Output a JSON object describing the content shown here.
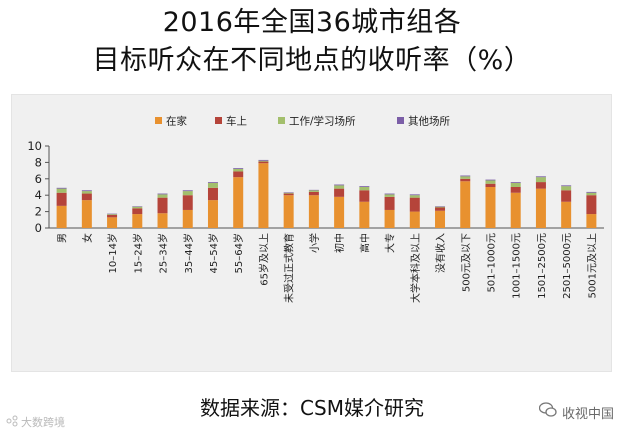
{
  "title_line1": "2016年全国36城市组各",
  "title_line2": "目标听众在不同地点的收听率（%）",
  "source": "数据来源：CSM媒介研究",
  "watermark_left": "大数跨境",
  "watermark_right": "收视中国",
  "colors": {
    "home": "#e8912f",
    "car": "#b5443a",
    "work": "#a3bf6c",
    "other": "#7b5ea7"
  },
  "chart_data": {
    "type": "bar",
    "stacked": true,
    "title": "2016年全国36城市组各目标听众在不同地点的收听率（%）",
    "ylim": [
      0,
      10
    ],
    "yticks": [
      0,
      2,
      4,
      6,
      8,
      10
    ],
    "legend_position": "top",
    "categories": [
      "男",
      "女",
      "10–14岁",
      "15–24岁",
      "25–34岁",
      "35–44岁",
      "45–54岁",
      "55–64岁",
      "65岁及以上",
      "未受过正式教育",
      "小学",
      "初中",
      "高中",
      "大专",
      "大学本科及以上",
      "没有收入",
      "500元及以下",
      "501–1000元",
      "1001–1500元",
      "1501–2500元",
      "2501–5000元",
      "5001元及以上"
    ],
    "series": [
      {
        "name": "在家",
        "key": "home",
        "values": [
          2.7,
          3.4,
          1.3,
          1.7,
          1.8,
          2.2,
          3.4,
          6.2,
          7.9,
          4.0,
          4.0,
          3.8,
          3.2,
          2.2,
          2.0,
          2.1,
          5.7,
          5.0,
          4.3,
          4.8,
          3.2,
          1.7
        ]
      },
      {
        "name": "车上",
        "key": "car",
        "values": [
          1.6,
          0.8,
          0.3,
          0.7,
          1.9,
          1.8,
          1.5,
          0.7,
          0.2,
          0.2,
          0.4,
          1.0,
          1.4,
          1.6,
          1.7,
          0.4,
          0.3,
          0.4,
          0.7,
          0.8,
          1.4,
          2.3
        ]
      },
      {
        "name": "工作/学习场所",
        "key": "work",
        "values": [
          0.5,
          0.3,
          0.1,
          0.2,
          0.4,
          0.5,
          0.6,
          0.3,
          0.1,
          0.1,
          0.2,
          0.4,
          0.4,
          0.3,
          0.3,
          0.1,
          0.3,
          0.4,
          0.5,
          0.6,
          0.5,
          0.3
        ]
      },
      {
        "name": "其他场所",
        "key": "other",
        "values": [
          0.1,
          0.1,
          0.05,
          0.05,
          0.1,
          0.1,
          0.1,
          0.1,
          0.1,
          0.05,
          0.05,
          0.1,
          0.1,
          0.1,
          0.1,
          0.05,
          0.1,
          0.1,
          0.1,
          0.1,
          0.1,
          0.1
        ]
      }
    ]
  }
}
